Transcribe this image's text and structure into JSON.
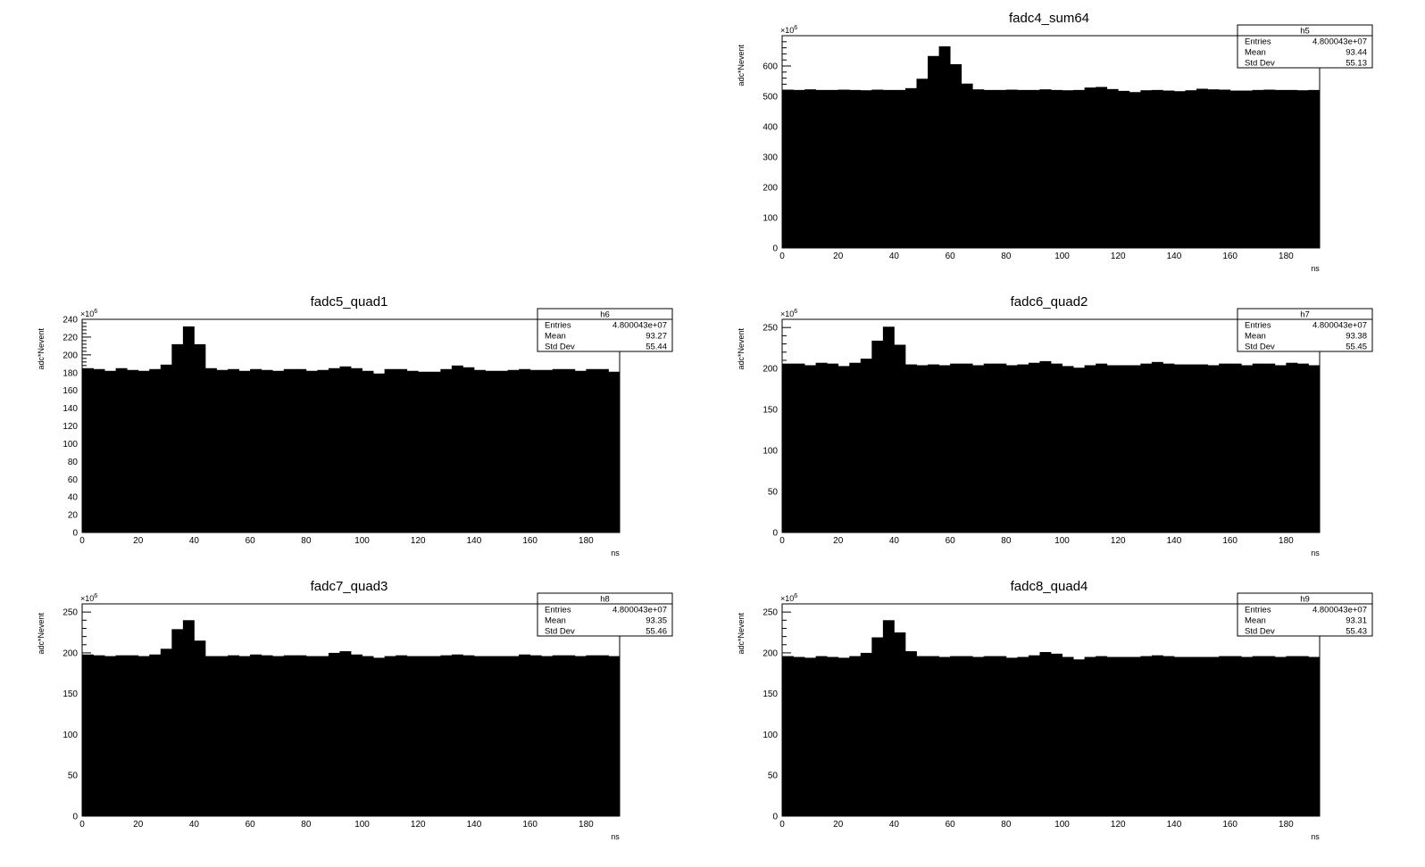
{
  "canvas": {
    "background": "#ffffff",
    "fill_color": "#000000"
  },
  "chart_data": [
    {
      "id": "sum64",
      "type": "bar",
      "title": "fadc4_sum64",
      "xlabel": "ns",
      "ylabel": "adc*Nevent",
      "multiplier": "×10",
      "multiplier_exp": "6",
      "xlim": [
        0,
        192
      ],
      "ylim": [
        0,
        700
      ],
      "xticks": [
        0,
        20,
        40,
        60,
        80,
        100,
        120,
        140,
        160,
        180
      ],
      "yticks": [
        0,
        100,
        200,
        300,
        400,
        500,
        600
      ],
      "bin_width": 4,
      "values": [
        522,
        521,
        523,
        521,
        521,
        522,
        521,
        520,
        522,
        521,
        521,
        527,
        558,
        633,
        665,
        606,
        542,
        523,
        521,
        521,
        522,
        521,
        521,
        523,
        521,
        520,
        521,
        529,
        531,
        524,
        518,
        514,
        520,
        521,
        519,
        517,
        520,
        525,
        523,
        522,
        519,
        519,
        521,
        522,
        521,
        521,
        520,
        521
      ],
      "stats": {
        "name": "h5",
        "entries_label": "Entries",
        "entries": "4.800043e+07",
        "mean_label": "Mean",
        "mean": "93.44",
        "std_label": "Std Dev",
        "std": "55.13"
      }
    },
    {
      "id": "quad1",
      "type": "bar",
      "title": "fadc5_quad1",
      "xlabel": "ns",
      "ylabel": "adc*Nevent",
      "multiplier": "×10",
      "multiplier_exp": "6",
      "xlim": [
        0,
        192
      ],
      "ylim": [
        0,
        240
      ],
      "xticks": [
        0,
        20,
        40,
        60,
        80,
        100,
        120,
        140,
        160,
        180
      ],
      "yticks": [
        0,
        20,
        40,
        60,
        80,
        100,
        120,
        140,
        160,
        180,
        200,
        220,
        240
      ],
      "bin_width": 4,
      "values": [
        185,
        184,
        182,
        185,
        183,
        182,
        184,
        189,
        212,
        232,
        212,
        185,
        183,
        184,
        182,
        184,
        183,
        182,
        184,
        184,
        182,
        183,
        185,
        187,
        185,
        182,
        179,
        184,
        184,
        182,
        181,
        181,
        184,
        188,
        186,
        183,
        182,
        182,
        183,
        184,
        183,
        183,
        184,
        184,
        182,
        184,
        184,
        181
      ],
      "stats": {
        "name": "h6",
        "entries_label": "Entries",
        "entries": "4.800043e+07",
        "mean_label": "Mean",
        "mean": "93.27",
        "std_label": "Std Dev",
        "std": "55.44"
      }
    },
    {
      "id": "quad2",
      "type": "bar",
      "title": "fadc6_quad2",
      "xlabel": "ns",
      "ylabel": "adc*Nevent",
      "multiplier": "×10",
      "multiplier_exp": "6",
      "xlim": [
        0,
        192
      ],
      "ylim": [
        0,
        260
      ],
      "xticks": [
        0,
        20,
        40,
        60,
        80,
        100,
        120,
        140,
        160,
        180
      ],
      "yticks": [
        0,
        50,
        100,
        150,
        200,
        250
      ],
      "bin_width": 4,
      "values": [
        206,
        206,
        204,
        207,
        206,
        203,
        207,
        212,
        234,
        251,
        229,
        205,
        204,
        205,
        204,
        206,
        206,
        204,
        206,
        206,
        204,
        205,
        207,
        209,
        206,
        203,
        201,
        204,
        206,
        204,
        204,
        204,
        206,
        208,
        206,
        205,
        205,
        205,
        204,
        206,
        206,
        204,
        206,
        206,
        204,
        207,
        206,
        204
      ],
      "stats": {
        "name": "h7",
        "entries_label": "Entries",
        "entries": "4.800043e+07",
        "mean_label": "Mean",
        "mean": "93.38",
        "std_label": "Std Dev",
        "std": "55.45"
      }
    },
    {
      "id": "quad3",
      "type": "bar",
      "title": "fadc7_quad3",
      "xlabel": "ns",
      "ylabel": "adc*Nevent",
      "multiplier": "×10",
      "multiplier_exp": "6",
      "xlim": [
        0,
        192
      ],
      "ylim": [
        0,
        260
      ],
      "xticks": [
        0,
        20,
        40,
        60,
        80,
        100,
        120,
        140,
        160,
        180
      ],
      "yticks": [
        0,
        50,
        100,
        150,
        200,
        250
      ],
      "bin_width": 4,
      "values": [
        198,
        197,
        196,
        197,
        197,
        196,
        198,
        205,
        229,
        240,
        215,
        196,
        196,
        197,
        196,
        198,
        197,
        196,
        197,
        197,
        196,
        196,
        200,
        202,
        198,
        196,
        194,
        196,
        197,
        196,
        196,
        196,
        197,
        198,
        197,
        196,
        196,
        196,
        196,
        198,
        197,
        196,
        197,
        197,
        196,
        197,
        197,
        196
      ],
      "stats": {
        "name": "h8",
        "entries_label": "Entries",
        "entries": "4.800043e+07",
        "mean_label": "Mean",
        "mean": "93.35",
        "std_label": "Std Dev",
        "std": "55.46"
      }
    },
    {
      "id": "quad4",
      "type": "bar",
      "title": "fadc8_quad4",
      "xlabel": "ns",
      "ylabel": "adc*Nevent",
      "multiplier": "×10",
      "multiplier_exp": "6",
      "xlim": [
        0,
        192
      ],
      "ylim": [
        0,
        260
      ],
      "xticks": [
        0,
        20,
        40,
        60,
        80,
        100,
        120,
        140,
        160,
        180
      ],
      "yticks": [
        0,
        50,
        100,
        150,
        200,
        250
      ],
      "bin_width": 4,
      "values": [
        196,
        195,
        194,
        196,
        195,
        194,
        196,
        200,
        219,
        240,
        225,
        202,
        196,
        196,
        195,
        196,
        196,
        195,
        196,
        196,
        194,
        195,
        197,
        201,
        199,
        195,
        192,
        195,
        196,
        195,
        195,
        195,
        196,
        197,
        196,
        195,
        195,
        195,
        195,
        196,
        196,
        195,
        196,
        196,
        195,
        196,
        196,
        195
      ],
      "stats": {
        "name": "h9",
        "entries_label": "Entries",
        "entries": "4.800043e+07",
        "mean_label": "Mean",
        "mean": "93.31",
        "std_label": "Std Dev",
        "std": "55.43"
      }
    }
  ]
}
